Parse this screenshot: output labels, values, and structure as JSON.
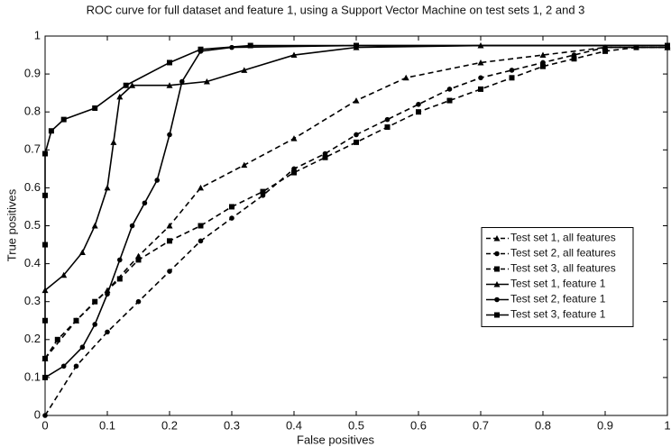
{
  "chart_data": {
    "type": "line",
    "title": "ROC curve for full dataset and feature 1, using a Support Vector Machine on test sets 1, 2 and 3",
    "x_label": "False positives",
    "y_label": "True positives",
    "xlim": [
      0,
      1
    ],
    "ylim": [
      0,
      1
    ],
    "xticks": [
      0,
      0.1,
      0.2,
      0.3,
      0.4,
      0.5,
      0.6,
      0.7,
      0.8,
      0.9,
      1
    ],
    "yticks": [
      0,
      0.1,
      0.2,
      0.3,
      0.4,
      0.5,
      0.6,
      0.7,
      0.8,
      0.9,
      1
    ],
    "legend": "right",
    "series": [
      {
        "name": "Test set 1, all features",
        "color": "#000000",
        "dashed": true,
        "marker": "triangle",
        "x": [
          0,
          0.05,
          0.1,
          0.15,
          0.2,
          0.25,
          0.32,
          0.4,
          0.5,
          0.58,
          0.7,
          0.8,
          0.9,
          1
        ],
        "values": [
          0.15,
          0.25,
          0.33,
          0.42,
          0.5,
          0.6,
          0.66,
          0.73,
          0.83,
          0.89,
          0.93,
          0.95,
          0.97,
          0.97
        ]
      },
      {
        "name": "Test set 2, all features",
        "color": "#000000",
        "dashed": true,
        "marker": "circle",
        "x": [
          0,
          0.05,
          0.1,
          0.15,
          0.2,
          0.25,
          0.3,
          0.35,
          0.4,
          0.45,
          0.5,
          0.55,
          0.6,
          0.65,
          0.7,
          0.75,
          0.8,
          0.85,
          0.9,
          1
        ],
        "values": [
          0,
          0.13,
          0.22,
          0.3,
          0.38,
          0.46,
          0.52,
          0.58,
          0.65,
          0.69,
          0.74,
          0.78,
          0.82,
          0.86,
          0.89,
          0.91,
          0.93,
          0.95,
          0.97,
          0.97
        ]
      },
      {
        "name": "Test set 3, all features",
        "color": "#000000",
        "dashed": true,
        "marker": "square",
        "x": [
          0,
          0.02,
          0.05,
          0.08,
          0.12,
          0.15,
          0.2,
          0.25,
          0.3,
          0.35,
          0.4,
          0.45,
          0.5,
          0.55,
          0.6,
          0.65,
          0.7,
          0.75,
          0.8,
          0.85,
          0.9,
          0.95,
          1
        ],
        "values": [
          0.15,
          0.2,
          0.25,
          0.3,
          0.36,
          0.41,
          0.46,
          0.5,
          0.55,
          0.59,
          0.64,
          0.68,
          0.72,
          0.76,
          0.8,
          0.83,
          0.86,
          0.89,
          0.92,
          0.94,
          0.96,
          0.97,
          0.97
        ]
      },
      {
        "name": "Test set 1, feature 1",
        "color": "#000000",
        "dashed": false,
        "marker": "triangle",
        "x": [
          0,
          0.03,
          0.06,
          0.08,
          0.1,
          0.11,
          0.12,
          0.14,
          0.2,
          0.26,
          0.32,
          0.4,
          0.5,
          0.7,
          1
        ],
        "values": [
          0.33,
          0.37,
          0.43,
          0.5,
          0.6,
          0.72,
          0.84,
          0.87,
          0.87,
          0.88,
          0.91,
          0.95,
          0.97,
          0.975,
          0.975
        ]
      },
      {
        "name": "Test set 2, feature 1",
        "color": "#000000",
        "dashed": false,
        "marker": "circle",
        "x": [
          0,
          0.03,
          0.06,
          0.08,
          0.1,
          0.12,
          0.14,
          0.16,
          0.18,
          0.2,
          0.22,
          0.25,
          0.3,
          0.5,
          1
        ],
        "values": [
          0.1,
          0.13,
          0.18,
          0.24,
          0.32,
          0.41,
          0.5,
          0.56,
          0.62,
          0.74,
          0.88,
          0.96,
          0.97,
          0.975,
          0.975
        ]
      },
      {
        "name": "Test set 3, feature 1",
        "color": "#000000",
        "dashed": false,
        "marker": "square",
        "x": [
          0,
          0,
          0,
          0,
          0,
          0.01,
          0.03,
          0.08,
          0.13,
          0.2,
          0.25,
          0.33,
          0.5,
          1
        ],
        "values": [
          0.1,
          0.25,
          0.45,
          0.58,
          0.69,
          0.75,
          0.78,
          0.81,
          0.87,
          0.93,
          0.965,
          0.975,
          0.975,
          0.975
        ]
      }
    ]
  }
}
